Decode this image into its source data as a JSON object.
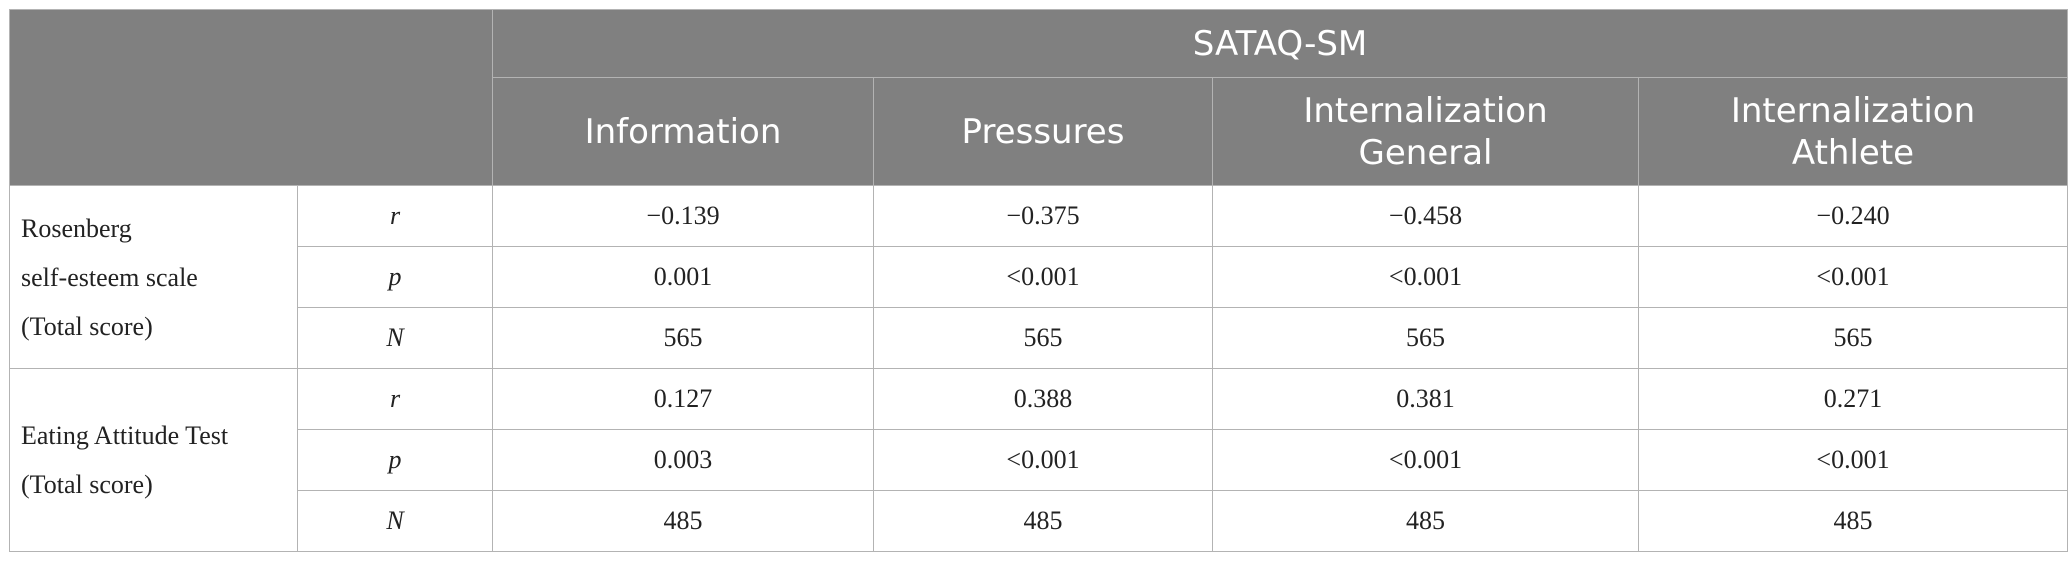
{
  "table": {
    "header": {
      "group_label": "SATAQ-SM",
      "columns": [
        [
          "Information"
        ],
        [
          "Pressures"
        ],
        [
          "Internalization",
          "General"
        ],
        [
          "Internalization",
          "Athlete"
        ]
      ]
    },
    "groups": [
      {
        "label_lines": [
          "Rosenberg",
          "self-esteem scale",
          "(Total score)"
        ],
        "rows": [
          {
            "stat": "r",
            "values": [
              "−0.139",
              "−0.375",
              "−0.458",
              "−0.240"
            ]
          },
          {
            "stat": "p",
            "values": [
              "0.001",
              "<0.001",
              "<0.001",
              "<0.001"
            ]
          },
          {
            "stat": "N",
            "values": [
              "565",
              "565",
              "565",
              "565"
            ]
          }
        ]
      },
      {
        "label_lines": [
          "Eating Attitude Test",
          "(Total score)"
        ],
        "rows": [
          {
            "stat": "r",
            "values": [
              "0.127",
              "0.388",
              "0.381",
              "0.271"
            ]
          },
          {
            "stat": "p",
            "values": [
              "0.003",
              "<0.001",
              "<0.001",
              "<0.001"
            ]
          },
          {
            "stat": "N",
            "values": [
              "485",
              "485",
              "485",
              "485"
            ]
          }
        ]
      }
    ]
  }
}
